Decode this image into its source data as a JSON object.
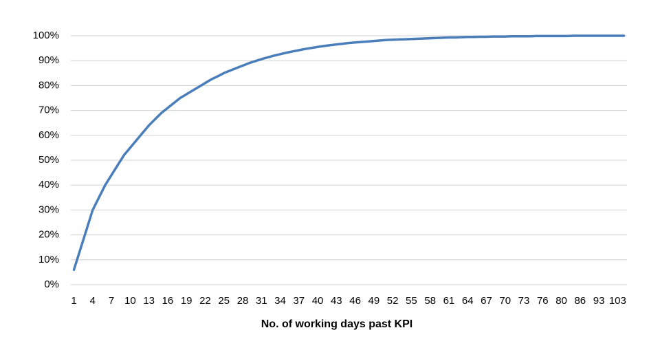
{
  "chart_data": {
    "type": "line",
    "x_label": "No. of working days past KPI",
    "categories": [
      "1",
      null,
      null,
      "4",
      null,
      null,
      "7",
      null,
      null,
      "10",
      null,
      null,
      "13",
      null,
      null,
      "16",
      null,
      null,
      "19",
      null,
      null,
      "22",
      null,
      null,
      "25",
      null,
      null,
      "28",
      null,
      null,
      "31",
      null,
      null,
      "34",
      null,
      null,
      "37",
      null,
      null,
      "40",
      null,
      null,
      "43",
      null,
      null,
      "46",
      null,
      null,
      "49",
      null,
      null,
      "52",
      null,
      null,
      "55",
      null,
      null,
      "58",
      null,
      null,
      "61",
      null,
      null,
      "64",
      null,
      null,
      "67",
      null,
      null,
      "70",
      null,
      null,
      "73",
      null,
      null,
      "76",
      null,
      null,
      "80",
      null,
      null,
      "86",
      null,
      null,
      "93",
      null,
      null,
      "103",
      null
    ],
    "values": [
      6,
      14,
      22,
      30,
      35,
      40,
      44,
      48,
      52,
      55,
      58,
      61,
      64,
      66.5,
      69,
      71,
      73,
      75,
      76.5,
      78,
      79.5,
      81,
      82.5,
      83.7,
      85,
      86,
      87,
      88,
      89,
      89.8,
      90.6,
      91.3,
      92,
      92.6,
      93.2,
      93.7,
      94.2,
      94.7,
      95.1,
      95.5,
      95.9,
      96.2,
      96.5,
      96.8,
      97.1,
      97.3,
      97.5,
      97.7,
      97.9,
      98.1,
      98.3,
      98.4,
      98.5,
      98.6,
      98.7,
      98.8,
      98.9,
      99,
      99.1,
      99.2,
      99.3,
      99.3,
      99.4,
      99.5,
      99.5,
      99.6,
      99.6,
      99.7,
      99.7,
      99.7,
      99.8,
      99.8,
      99.8,
      99.8,
      99.9,
      99.9,
      99.9,
      99.9,
      99.9,
      99.9,
      100,
      100,
      100,
      100,
      100,
      100,
      100,
      100,
      100
    ],
    "color": "#4a7ebb",
    "ylim": [
      0,
      100
    ],
    "yticks": [
      {
        "value": 0,
        "label": "0%"
      },
      {
        "value": 10,
        "label": "10%"
      },
      {
        "value": 20,
        "label": "20%"
      },
      {
        "value": 30,
        "label": "30%"
      },
      {
        "value": 40,
        "label": "40%"
      },
      {
        "value": 50,
        "label": "50%"
      },
      {
        "value": 60,
        "label": "60%"
      },
      {
        "value": 70,
        "label": "70%"
      },
      {
        "value": 80,
        "label": "80%"
      },
      {
        "value": 90,
        "label": "90%"
      },
      {
        "value": 100,
        "label": "100%"
      }
    ],
    "grid": true
  }
}
